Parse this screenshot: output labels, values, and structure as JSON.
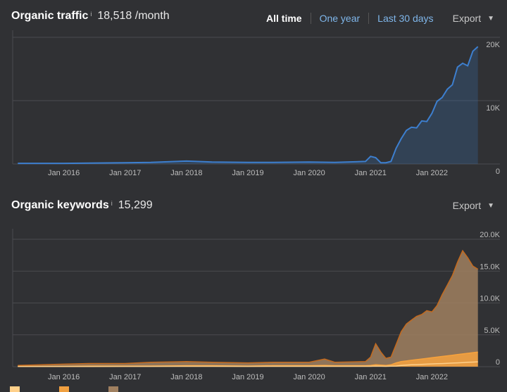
{
  "traffic": {
    "title": "Organic traffic",
    "info_icon": "i",
    "value": "18,518 /month",
    "ranges": [
      "All time",
      "One year",
      "Last 30 days"
    ],
    "active_range": "All time",
    "export_label": "Export",
    "chart_data": {
      "type": "area",
      "series": [
        {
          "name": "",
          "color": "#3d7fcf"
        }
      ],
      "x_ticks": [
        "Jan 2016",
        "Jan 2017",
        "Jan 2018",
        "Jan 2019",
        "Jan 2020",
        "Jan 2021",
        "Jan 2022"
      ],
      "y_ticks": [
        "20K",
        "10K",
        "0"
      ],
      "ylim": [
        0,
        20000
      ],
      "x": [
        "2015-04",
        "2016-01",
        "2017-01",
        "2017-06",
        "2018-01",
        "2018-06",
        "2019-01",
        "2019-06",
        "2020-01",
        "2020-06",
        "2020-12",
        "2021-01",
        "2021-02",
        "2021-03",
        "2021-04",
        "2021-05",
        "2021-06",
        "2021-07",
        "2021-08",
        "2021-09",
        "2021-10",
        "2021-11",
        "2021-12",
        "2022-01",
        "2022-02",
        "2022-03",
        "2022-04",
        "2022-05",
        "2022-06",
        "2022-07",
        "2022-08",
        "2022-09",
        "2022-10"
      ],
      "values": [
        100,
        100,
        200,
        250,
        450,
        300,
        250,
        250,
        300,
        250,
        400,
        1200,
        1000,
        200,
        200,
        400,
        2500,
        4000,
        5300,
        5800,
        5700,
        6800,
        6700,
        8000,
        9900,
        10500,
        11800,
        12500,
        15300,
        15900,
        15500,
        17800,
        18518
      ]
    }
  },
  "keywords": {
    "title": "Organic keywords",
    "info_icon": "i",
    "value": "15,299",
    "export_label": "Export",
    "chart_data": {
      "type": "area",
      "stacked": true,
      "series": [
        {
          "name": "",
          "color": "#a08060"
        },
        {
          "name": "",
          "color": "#f0a040"
        },
        {
          "name": "",
          "color": "#ffd08a"
        }
      ],
      "x_ticks": [
        "Jan 2016",
        "Jan 2017",
        "Jan 2018",
        "Jan 2019",
        "Jan 2020",
        "Jan 2021",
        "Jan 2022"
      ],
      "y_ticks": [
        "20.0K",
        "15.0K",
        "10.0K",
        "5.0K",
        "0"
      ],
      "ylim": [
        0,
        20000
      ],
      "x": [
        "2015-04",
        "2016-01",
        "2016-06",
        "2017-01",
        "2017-06",
        "2018-01",
        "2018-06",
        "2019-01",
        "2019-06",
        "2020-01",
        "2020-04",
        "2020-06",
        "2020-12",
        "2021-01",
        "2021-02",
        "2021-03",
        "2021-04",
        "2021-05",
        "2021-06",
        "2021-07",
        "2021-08",
        "2021-09",
        "2021-10",
        "2021-11",
        "2021-12",
        "2022-01",
        "2022-02",
        "2022-03",
        "2022-04",
        "2022-05",
        "2022-06",
        "2022-07",
        "2022-08",
        "2022-09",
        "2022-10"
      ],
      "total": [
        200,
        400,
        500,
        500,
        700,
        800,
        700,
        600,
        700,
        700,
        1200,
        700,
        800,
        1500,
        3600,
        2300,
        1300,
        1500,
        3500,
        5500,
        6700,
        7300,
        7900,
        8200,
        8800,
        8600,
        9600,
        11300,
        12800,
        14300,
        16400,
        18200,
        17100,
        15800,
        15299
      ],
      "mid": [
        50,
        50,
        100,
        100,
        100,
        150,
        150,
        100,
        150,
        150,
        200,
        150,
        150,
        200,
        300,
        250,
        200,
        300,
        600,
        800,
        900,
        1000,
        1100,
        1200,
        1300,
        1400,
        1500,
        1600,
        1700,
        1800,
        1900,
        2000,
        2100,
        2200,
        2300
      ],
      "low": [
        20,
        20,
        30,
        40,
        40,
        50,
        50,
        40,
        50,
        50,
        60,
        50,
        50,
        60,
        80,
        70,
        60,
        80,
        100,
        200,
        250,
        300,
        320,
        350,
        400,
        430,
        460,
        490,
        520,
        560,
        600,
        640,
        680,
        720,
        760
      ]
    }
  }
}
